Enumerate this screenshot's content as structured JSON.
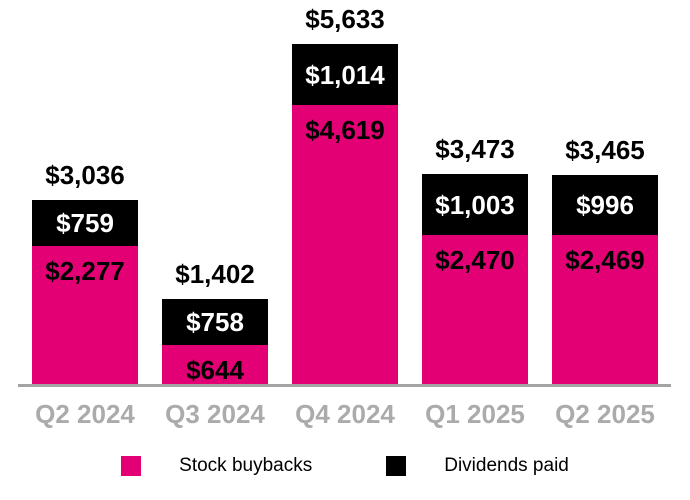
{
  "chart_data": {
    "type": "bar",
    "stacked": true,
    "title": "",
    "xlabel": "",
    "ylabel": "",
    "grid": false,
    "value_prefix": "$",
    "categories": [
      "Q2 2024",
      "Q3 2024",
      "Q4 2024",
      "Q1 2025",
      "Q2 2025"
    ],
    "series": [
      {
        "name": "Stock buybacks",
        "color": "#E20074",
        "values": [
          2277,
          644,
          4619,
          2470,
          2469
        ]
      },
      {
        "name": "Dividends paid",
        "color": "#000000",
        "values": [
          759,
          758,
          1014,
          1003,
          996
        ]
      }
    ],
    "totals": [
      3036,
      1402,
      5633,
      3473,
      3465
    ],
    "total_labels": [
      "$3,036",
      "$1,402",
      "$5,633",
      "$3,473",
      "$3,465"
    ],
    "segment_labels": {
      "stock_buybacks": [
        "$2,277",
        "$644",
        "$4,619",
        "$2,470",
        "$2,469"
      ],
      "dividends_paid": [
        "$759",
        "$758",
        "$1,014",
        "$1,003",
        "$996"
      ]
    },
    "legend_position": "bottom",
    "colors": {
      "buybacks_fill": "#E20074",
      "dividends_fill": "#000000",
      "total_label_text": "#000000",
      "buybacks_label_text": "#000000",
      "dividends_label_text": "#ffffff",
      "x_axis_label_text": "#ABABAB",
      "axis_line": "#A3A3A3",
      "background": "#ffffff"
    },
    "ylim": [
      0,
      5633
    ]
  },
  "legend": {
    "items": [
      {
        "label": "Stock buybacks",
        "color": "#E20074"
      },
      {
        "label": "Dividends paid",
        "color": "#000000"
      }
    ]
  }
}
